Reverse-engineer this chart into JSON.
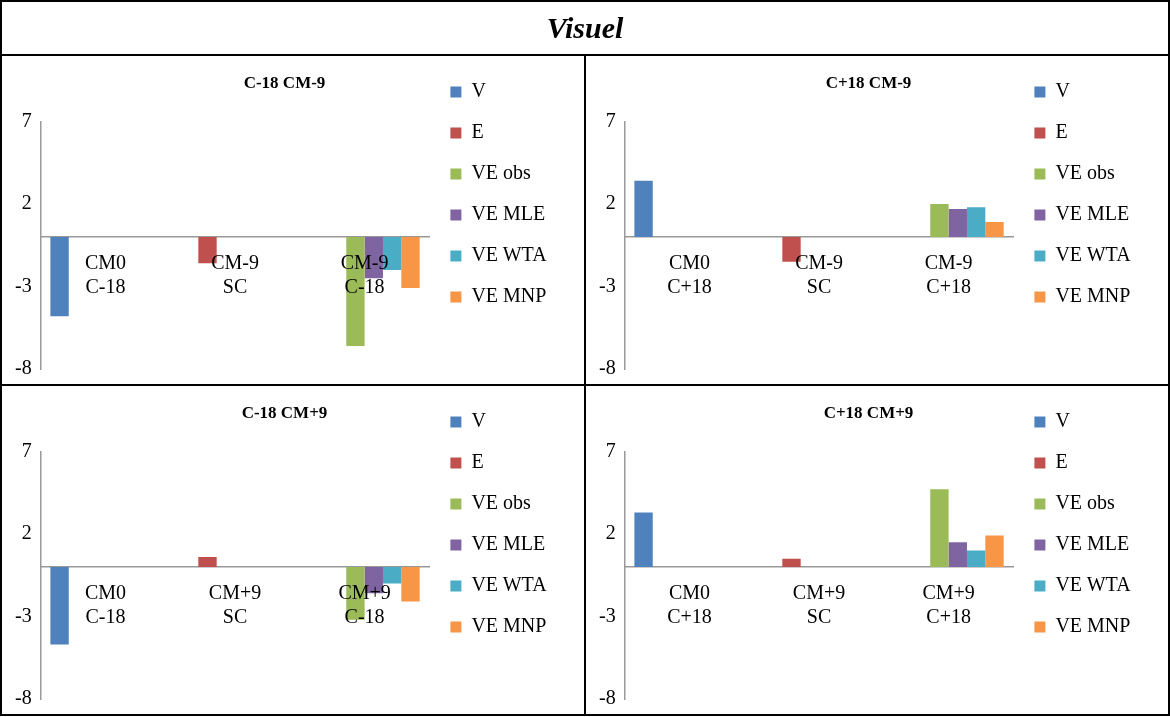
{
  "chart_data": [
    {
      "type": "bar",
      "title": "C-18 CM-9",
      "annotations": [
        "Visuel"
      ],
      "categories": [
        "CM0 C-18",
        "CM-9 SC",
        "CM-9 C-18"
      ],
      "ylim": [
        -8,
        7
      ],
      "yticks": [
        -8,
        -3,
        2,
        7
      ],
      "grid": false,
      "legend": "right",
      "series": [
        {
          "name": "V",
          "color": "#4f81bd",
          "values": [
            -4.8,
            null,
            null
          ]
        },
        {
          "name": "E",
          "color": "#c0504d",
          "values": [
            null,
            -1.6,
            null
          ]
        },
        {
          "name": "VE obs",
          "color": "#9bbb59",
          "values": [
            null,
            null,
            -6.6
          ]
        },
        {
          "name": "VE MLE",
          "color": "#8064a2",
          "values": [
            null,
            null,
            -2.5
          ]
        },
        {
          "name": "VE WTA",
          "color": "#4bacc6",
          "values": [
            null,
            null,
            -2.0
          ]
        },
        {
          "name": "VE MNP",
          "color": "#f79646",
          "values": [
            null,
            null,
            -3.1
          ]
        }
      ]
    },
    {
      "type": "bar",
      "title": "C+18 CM-9",
      "categories": [
        "CM0 C+18",
        "CM-9 SC",
        "CM-9 C+18"
      ],
      "ylim": [
        -8,
        7
      ],
      "yticks": [
        -8,
        -3,
        2,
        7
      ],
      "grid": false,
      "legend": "right",
      "series": [
        {
          "name": "V",
          "color": "#4f81bd",
          "values": [
            3.4,
            null,
            null
          ]
        },
        {
          "name": "E",
          "color": "#c0504d",
          "values": [
            null,
            -1.5,
            null
          ]
        },
        {
          "name": "VE obs",
          "color": "#9bbb59",
          "values": [
            null,
            null,
            2.0
          ]
        },
        {
          "name": "VE MLE",
          "color": "#8064a2",
          "values": [
            null,
            null,
            1.7
          ]
        },
        {
          "name": "VE WTA",
          "color": "#4bacc6",
          "values": [
            null,
            null,
            1.8
          ]
        },
        {
          "name": "VE MNP",
          "color": "#f79646",
          "values": [
            null,
            null,
            0.9
          ]
        }
      ]
    },
    {
      "type": "bar",
      "title": "C-18 CM+9",
      "categories": [
        "CM0 C-18",
        "CM+9 SC",
        "CM+9 C-18"
      ],
      "ylim": [
        -8,
        7
      ],
      "yticks": [
        -8,
        -3,
        2,
        7
      ],
      "grid": false,
      "legend": "right",
      "series": [
        {
          "name": "V",
          "color": "#4f81bd",
          "values": [
            -4.7,
            null,
            null
          ]
        },
        {
          "name": "E",
          "color": "#c0504d",
          "values": [
            null,
            0.6,
            null
          ]
        },
        {
          "name": "VE obs",
          "color": "#9bbb59",
          "values": [
            null,
            null,
            -3.2
          ]
        },
        {
          "name": "VE MLE",
          "color": "#8064a2",
          "values": [
            null,
            null,
            -1.6
          ]
        },
        {
          "name": "VE WTA",
          "color": "#4bacc6",
          "values": [
            null,
            null,
            -1.0
          ]
        },
        {
          "name": "VE MNP",
          "color": "#f79646",
          "values": [
            null,
            null,
            -2.1
          ]
        }
      ]
    },
    {
      "type": "bar",
      "title": "C+18 CM+9",
      "categories": [
        "CM0 C+18",
        "CM+9 SC",
        "CM+9 C+18"
      ],
      "ylim": [
        -8,
        7
      ],
      "yticks": [
        -8,
        -3,
        2,
        7
      ],
      "grid": false,
      "legend": "right",
      "series": [
        {
          "name": "V",
          "color": "#4f81bd",
          "values": [
            3.3,
            null,
            null
          ]
        },
        {
          "name": "E",
          "color": "#c0504d",
          "values": [
            null,
            0.5,
            null
          ]
        },
        {
          "name": "VE obs",
          "color": "#9bbb59",
          "values": [
            null,
            null,
            4.7
          ]
        },
        {
          "name": "VE MLE",
          "color": "#8064a2",
          "values": [
            null,
            null,
            1.5
          ]
        },
        {
          "name": "VE WTA",
          "color": "#4bacc6",
          "values": [
            null,
            null,
            1.0
          ]
        },
        {
          "name": "VE MNP",
          "color": "#f79646",
          "values": [
            null,
            null,
            1.9
          ]
        }
      ]
    }
  ]
}
